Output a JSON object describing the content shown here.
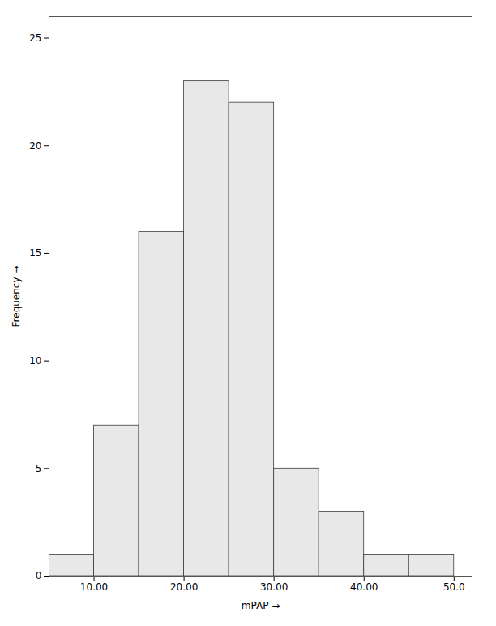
{
  "chart_data": {
    "type": "histogram",
    "bins": [
      5,
      10,
      15,
      20,
      25,
      30,
      35,
      40,
      45,
      50
    ],
    "values": [
      1,
      7,
      16,
      23,
      22,
      5,
      3,
      1,
      1
    ],
    "color": "#e8e8e8",
    "x_label": "mPAP",
    "y_label": "Frequency",
    "xlim": [
      5,
      52
    ],
    "xticks": [
      {
        "value": 10.0,
        "label": "10.00"
      },
      {
        "value": 20.0,
        "label": "20.00"
      },
      {
        "value": 30.0,
        "label": "30.00"
      },
      {
        "value": 40.0,
        "label": "40.00"
      },
      {
        "value": 50.0,
        "label": "50.0"
      }
    ],
    "ylim": [
      0,
      26
    ],
    "yticks": [
      0,
      5,
      10,
      15,
      20,
      25
    ],
    "grid": false
  }
}
